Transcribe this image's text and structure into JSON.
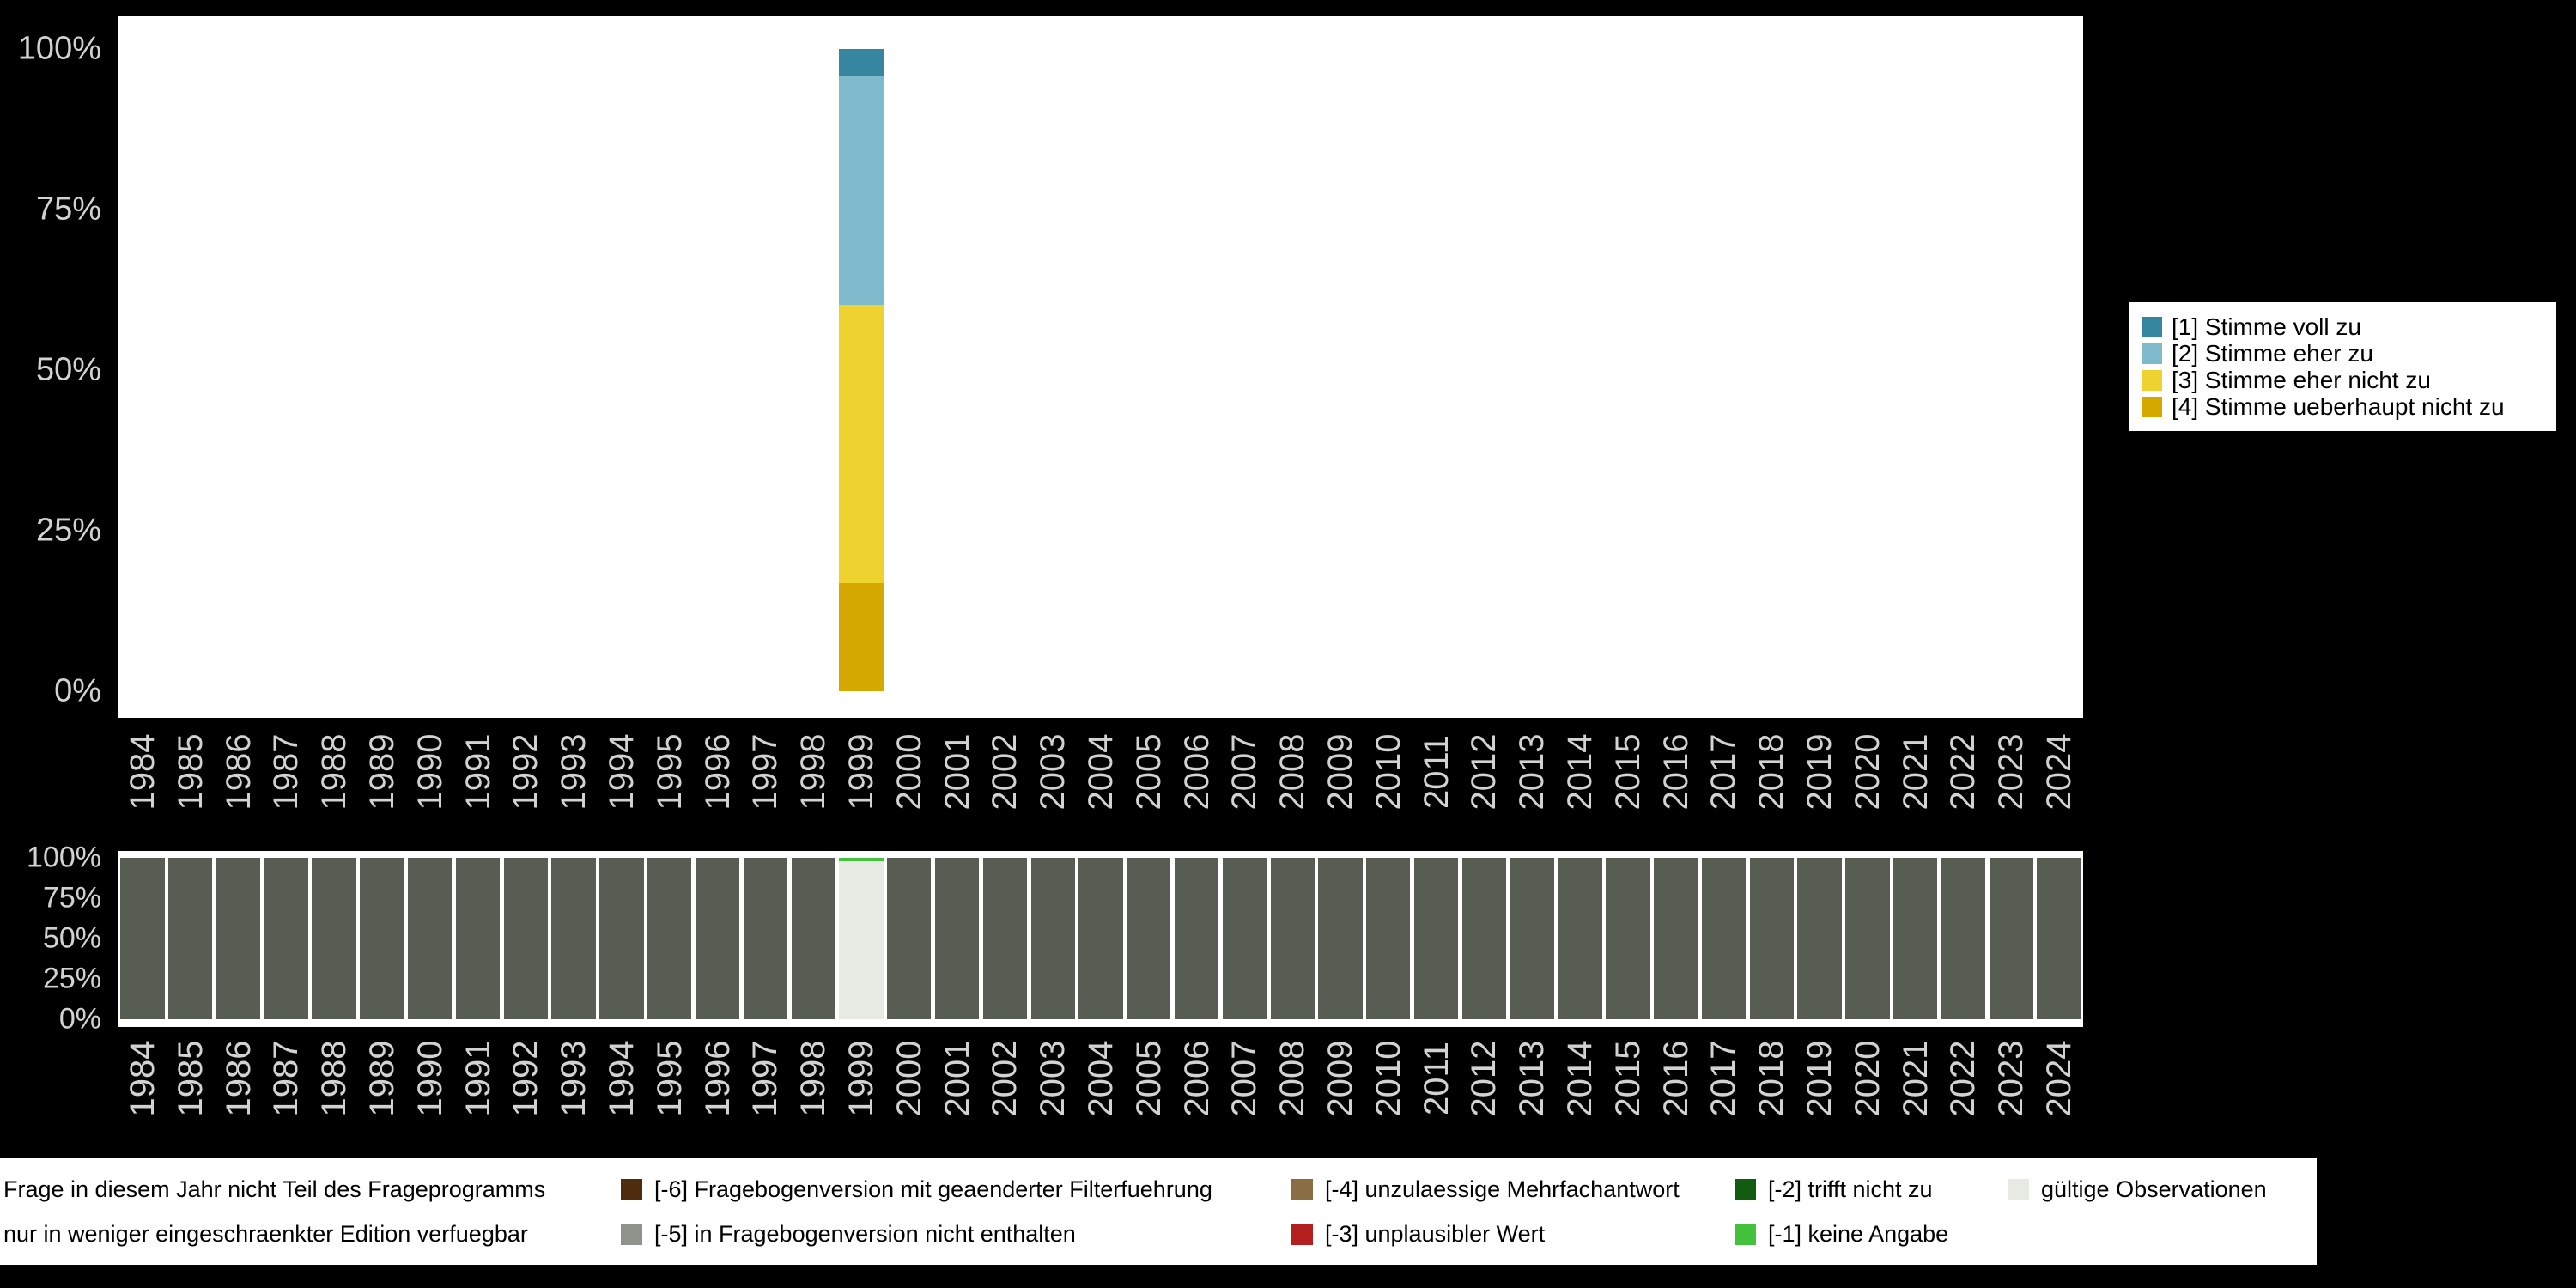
{
  "page": {
    "background": "#000000",
    "axis_text_color": "#d2d2d2"
  },
  "chart_data": [
    {
      "id": "frequencies",
      "type": "bar",
      "stacked": true,
      "stack_order": "top-to-bottom",
      "title": "",
      "xlabel": "",
      "ylabel": "",
      "ylim": [
        0,
        100
      ],
      "yticks": [
        "100%",
        "75%",
        "50%",
        "25%",
        "0%"
      ],
      "grid": false,
      "legend_position": "right",
      "bar_width_fraction": 0.92,
      "categories": [
        "1984",
        "1985",
        "1986",
        "1987",
        "1988",
        "1989",
        "1990",
        "1991",
        "1992",
        "1993",
        "1994",
        "1995",
        "1996",
        "1997",
        "1998",
        "1999",
        "2000",
        "2001",
        "2002",
        "2003",
        "2004",
        "2005",
        "2006",
        "2007",
        "2008",
        "2009",
        "2010",
        "2011",
        "2012",
        "2013",
        "2014",
        "2015",
        "2016",
        "2017",
        "2018",
        "2019",
        "2020",
        "2021",
        "2022",
        "2023",
        "2024"
      ],
      "series": [
        {
          "name": "[1] Stimme voll zu",
          "color": "#35869e",
          "values": [
            0,
            0,
            0,
            0,
            0,
            0,
            0,
            0,
            0,
            0,
            0,
            0,
            0,
            0,
            0,
            4.3,
            0,
            0,
            0,
            0,
            0,
            0,
            0,
            0,
            0,
            0,
            0,
            0,
            0,
            0,
            0,
            0,
            0,
            0,
            0,
            0,
            0,
            0,
            0,
            0,
            0
          ]
        },
        {
          "name": "[2] Stimme eher zu",
          "color": "#7fb9cc",
          "values": [
            0,
            0,
            0,
            0,
            0,
            0,
            0,
            0,
            0,
            0,
            0,
            0,
            0,
            0,
            0,
            35.5,
            0,
            0,
            0,
            0,
            0,
            0,
            0,
            0,
            0,
            0,
            0,
            0,
            0,
            0,
            0,
            0,
            0,
            0,
            0,
            0,
            0,
            0,
            0,
            0,
            0
          ]
        },
        {
          "name": "[3] Stimme eher nicht zu",
          "color": "#eed22f",
          "values": [
            0,
            0,
            0,
            0,
            0,
            0,
            0,
            0,
            0,
            0,
            0,
            0,
            0,
            0,
            0,
            43.3,
            0,
            0,
            0,
            0,
            0,
            0,
            0,
            0,
            0,
            0,
            0,
            0,
            0,
            0,
            0,
            0,
            0,
            0,
            0,
            0,
            0,
            0,
            0,
            0,
            0
          ]
        },
        {
          "name": "[4] Stimme ueberhaupt nicht zu",
          "color": "#d5a900",
          "values": [
            0,
            0,
            0,
            0,
            0,
            0,
            0,
            0,
            0,
            0,
            0,
            0,
            0,
            0,
            0,
            16.9,
            0,
            0,
            0,
            0,
            0,
            0,
            0,
            0,
            0,
            0,
            0,
            0,
            0,
            0,
            0,
            0,
            0,
            0,
            0,
            0,
            0,
            0,
            0,
            0,
            0
          ]
        }
      ]
    },
    {
      "id": "missings",
      "type": "bar",
      "stacked": true,
      "stack_order": "top-to-bottom",
      "title": "",
      "xlabel": "",
      "ylabel": "",
      "ylim": [
        0,
        100
      ],
      "yticks": [
        "100%",
        "75%",
        "50%",
        "25%",
        "0%"
      ],
      "grid": false,
      "legend_position": "bottom",
      "bar_width_fraction": 0.92,
      "categories": [
        "1984",
        "1985",
        "1986",
        "1987",
        "1988",
        "1989",
        "1990",
        "1991",
        "1992",
        "1993",
        "1994",
        "1995",
        "1996",
        "1997",
        "1998",
        "1999",
        "2000",
        "2001",
        "2002",
        "2003",
        "2004",
        "2005",
        "2006",
        "2007",
        "2008",
        "2009",
        "2010",
        "2011",
        "2012",
        "2013",
        "2014",
        "2015",
        "2016",
        "2017",
        "2018",
        "2019",
        "2020",
        "2021",
        "2022",
        "2023",
        "2024"
      ],
      "series": [
        {
          "name": "[-1] keine Angabe",
          "color": "#44c13d",
          "values": [
            0,
            0,
            0,
            0,
            0,
            0,
            0,
            0,
            0,
            0,
            0,
            0,
            0,
            0,
            0,
            2,
            0,
            0,
            0,
            0,
            0,
            0,
            0,
            0,
            0,
            0,
            0,
            0,
            0,
            0,
            0,
            0,
            0,
            0,
            0,
            0,
            0,
            0,
            0,
            0,
            0
          ]
        },
        {
          "name": "gültige Observationen",
          "color": "#e7eae2",
          "values": [
            0,
            0,
            0,
            0,
            0,
            0,
            0,
            0,
            0,
            0,
            0,
            0,
            0,
            0,
            0,
            98,
            0,
            0,
            0,
            0,
            0,
            0,
            0,
            0,
            0,
            0,
            0,
            0,
            0,
            0,
            0,
            0,
            0,
            0,
            0,
            0,
            0,
            0,
            0,
            0,
            0
          ]
        },
        {
          "name": "Frage in diesem Jahr nicht Teil des Frageprogramms",
          "color": "#575d52",
          "values": [
            100,
            100,
            100,
            100,
            100,
            100,
            100,
            100,
            100,
            100,
            100,
            100,
            100,
            100,
            100,
            0,
            100,
            100,
            100,
            100,
            100,
            100,
            100,
            100,
            100,
            100,
            100,
            100,
            100,
            100,
            100,
            100,
            100,
            100,
            100,
            100,
            100,
            100,
            100,
            100,
            100
          ]
        }
      ]
    }
  ],
  "missings_legend": {
    "rows": [
      [
        {
          "label": "Frage in diesem Jahr nicht Teil des Frageprogramms",
          "color": null
        },
        {
          "label": "[-6] Fragebogenversion mit geaenderter Filterfuehrung",
          "color": "#4e2c0d"
        },
        {
          "label": "[-4] unzulaessige Mehrfachantwort",
          "color": "#8a6d45"
        },
        {
          "label": "[-2] trifft nicht zu",
          "color": "#115c11"
        },
        {
          "label": "gültige Observationen",
          "color": "#e7eae2"
        }
      ],
      [
        {
          "label": "nur in weniger eingeschraenkter Edition verfuegbar",
          "color": null
        },
        {
          "label": "[-5] in Fragebogenversion nicht enthalten",
          "color": "#8e938b"
        },
        {
          "label": "[-3] unplausibler Wert",
          "color": "#b41f1f"
        },
        {
          "label": "[-1] keine Angabe",
          "color": "#44c13d"
        }
      ]
    ]
  }
}
